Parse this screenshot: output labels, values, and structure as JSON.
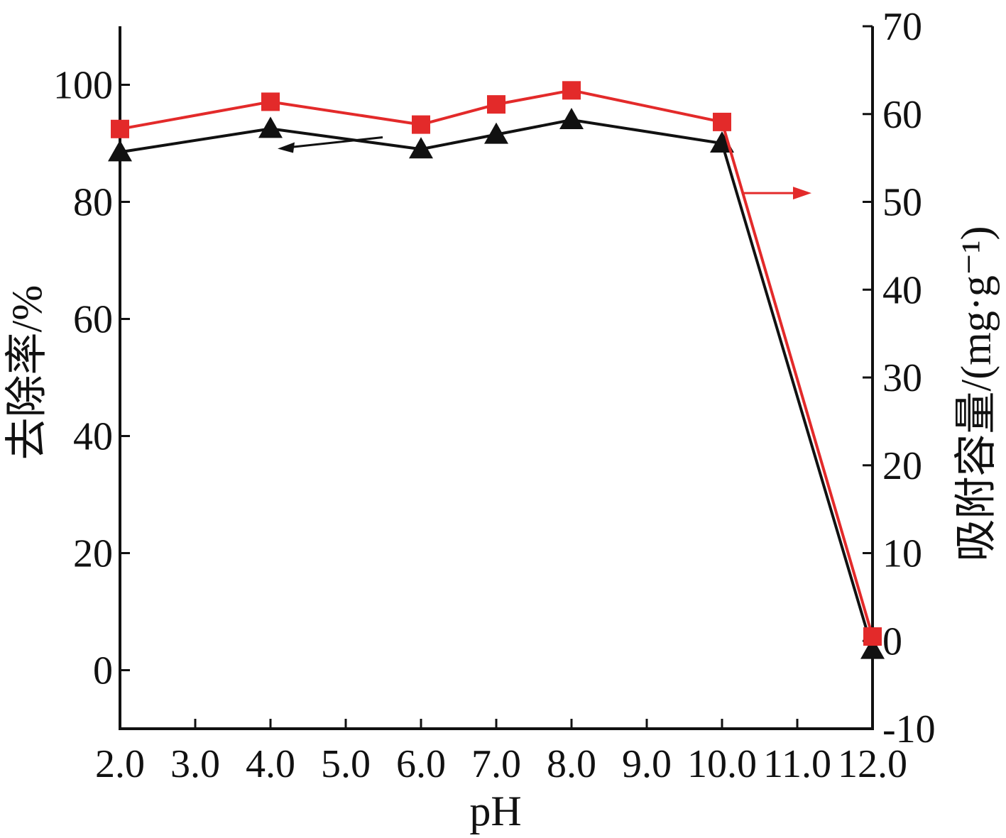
{
  "chart_data": {
    "type": "line",
    "x": [
      2.0,
      4.0,
      6.0,
      7.0,
      8.0,
      10.0,
      12.0
    ],
    "x_ticks": [
      "2.0",
      "3.0",
      "4.0",
      "5.0",
      "6.0",
      "7.0",
      "8.0",
      "9.0",
      "10.0",
      "11.0",
      "12.0"
    ],
    "xlabel": "pH",
    "ylabel_left": "去除率/%",
    "ylabel_right": "吸附容量/(mg·g⁻¹)",
    "ylim_left": [
      -10,
      110
    ],
    "ylim_right": [
      -10,
      70
    ],
    "y_ticks_left": [
      0,
      20,
      40,
      60,
      80,
      100
    ],
    "y_ticks_right": [
      -10,
      0,
      10,
      20,
      30,
      40,
      50,
      60,
      70
    ],
    "grid": false,
    "series": [
      {
        "axis": "left",
        "marker": "triangle",
        "color": "#111111",
        "values": [
          88.5,
          92.5,
          89.0,
          91.5,
          94.0,
          90.0,
          3.5
        ]
      },
      {
        "axis": "right",
        "marker": "square",
        "color": "#e32a2a",
        "values": [
          58.3,
          61.4,
          58.8,
          61.1,
          62.7,
          59.1,
          0.5
        ]
      }
    ],
    "annotations": [
      {
        "type": "arrow",
        "points_to": "left-axis",
        "color": "#111111",
        "near_x": 5.0,
        "near_y_left": 92
      },
      {
        "type": "arrow",
        "points_to": "right-axis",
        "color": "#e32a2a",
        "near_x": 11.0,
        "near_y_right": 51
      }
    ]
  }
}
